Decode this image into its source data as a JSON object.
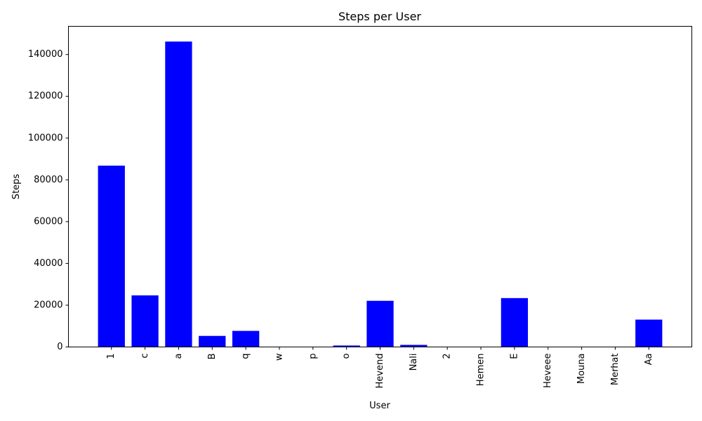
{
  "chart_data": {
    "type": "bar",
    "title": "Steps per User",
    "xlabel": "User",
    "ylabel": "Steps",
    "categories": [
      "1",
      "c",
      "a",
      "B",
      "q",
      "w",
      "p",
      "o",
      "Hevend",
      "Nali",
      "2",
      "Hemen",
      "E",
      "Heveee",
      "Mouna",
      "Merhat",
      "Aa"
    ],
    "values": [
      86800,
      24700,
      146200,
      5300,
      7700,
      0,
      0,
      700,
      22100,
      1000,
      0,
      0,
      23400,
      0,
      0,
      0,
      13100
    ],
    "ylim": [
      0,
      153500
    ],
    "yticks": [
      0,
      20000,
      40000,
      60000,
      80000,
      100000,
      120000,
      140000
    ],
    "ytick_labels": [
      "0",
      "20000",
      "40000",
      "60000",
      "80000",
      "100000",
      "120000",
      "140000"
    ],
    "bar_color": "#0000ff",
    "grid": false,
    "legend": "none"
  }
}
